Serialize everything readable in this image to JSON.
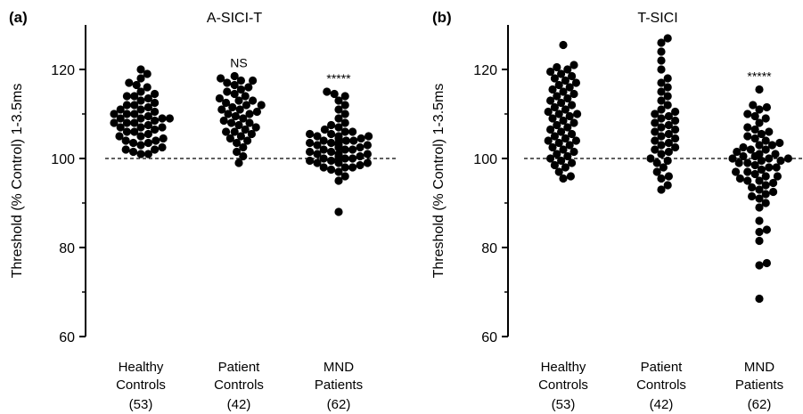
{
  "chart_data": [
    {
      "panel_label": "(a)",
      "type": "scatter",
      "title": "A-SICI-T",
      "ylabel": "Threshold (% Control) 1-3.5ms",
      "ylim": [
        60,
        130
      ],
      "yticks": [
        60,
        80,
        100,
        120
      ],
      "reference_line": 100,
      "categories": [
        {
          "line1": "Healthy",
          "line2": "Controls",
          "line3": "(53)"
        },
        {
          "line1": "Patient",
          "line2": "Controls",
          "line3": "(42)"
        },
        {
          "line1": "MND",
          "line2": "Patients",
          "line3": "(62)"
        }
      ],
      "annotations": [
        "",
        "NS",
        "*****"
      ],
      "series": [
        {
          "values": [
            101,
            101,
            101.5,
            102,
            102,
            102.5,
            103,
            103.5,
            103.5,
            104,
            104,
            104.5,
            105,
            105,
            105.5,
            106,
            106,
            106.5,
            107,
            107,
            107,
            107.5,
            108,
            108,
            108,
            108.5,
            109,
            109,
            109,
            109,
            109.5,
            110,
            110,
            110,
            110.5,
            111,
            111,
            111.5,
            112,
            112,
            112.5,
            113,
            113.5,
            114,
            114,
            114.5,
            115,
            116,
            116.5,
            117,
            118,
            119,
            120
          ]
        },
        {
          "values": [
            99,
            100.5,
            101.5,
            102.5,
            103.5,
            104,
            104.5,
            105,
            105.5,
            106,
            106,
            106.5,
            107,
            107.5,
            108,
            108,
            108.5,
            109,
            109.5,
            110,
            110,
            110.5,
            111,
            111,
            111.5,
            112,
            112,
            112.5,
            113,
            113,
            113.5,
            114,
            114.5,
            115,
            115.5,
            116,
            116.5,
            117,
            117.5,
            118,
            118.5,
            117.5
          ]
        },
        {
          "values": [
            88,
            95,
            96,
            97,
            97.5,
            98,
            98,
            98.5,
            99,
            99,
            99.5,
            99.5,
            100,
            100,
            100,
            100.5,
            100.5,
            101,
            101,
            101,
            101.5,
            101.5,
            102,
            102,
            102,
            102.5,
            102.5,
            103,
            103,
            103,
            103.5,
            103.5,
            104,
            104,
            104,
            104.5,
            104.5,
            105,
            105,
            105,
            105.5,
            105.5,
            106,
            106,
            106.5,
            107,
            107.5,
            108,
            109,
            110,
            111,
            112,
            113,
            114,
            114.5,
            115,
            101,
            102.5,
            103.5,
            100,
            99,
            98
          ]
        }
      ]
    },
    {
      "panel_label": "(b)",
      "type": "scatter",
      "title": "T-SICI",
      "ylabel": "Threshold (% Control) 1-3.5ms",
      "ylim": [
        60,
        130
      ],
      "yticks": [
        60,
        80,
        100,
        120
      ],
      "reference_line": 100,
      "categories": [
        {
          "line1": "Healthy",
          "line2": "Controls",
          "line3": "(53)"
        },
        {
          "line1": "Patient",
          "line2": "Controls",
          "line3": "(42)"
        },
        {
          "line1": "MND",
          "line2": "Patients",
          "line3": "(62)"
        }
      ],
      "annotations": [
        "",
        "",
        "*****"
      ],
      "series": [
        {
          "values": [
            95.5,
            96,
            97,
            98,
            98.5,
            99,
            99.5,
            100,
            100.5,
            101,
            101.5,
            102,
            102.5,
            103,
            103.5,
            104,
            104,
            104.5,
            105,
            105.5,
            106,
            106.5,
            107,
            107.5,
            108,
            108.5,
            109,
            109.5,
            110,
            110,
            110.5,
            111,
            111.5,
            112,
            112.5,
            113,
            113.5,
            114,
            114.5,
            115,
            115.5,
            116,
            116.5,
            117,
            117.5,
            118,
            118.5,
            119,
            119.5,
            120,
            120.5,
            121,
            125.5
          ]
        },
        {
          "values": [
            93,
            94,
            95.5,
            96,
            97,
            98,
            99,
            99.5,
            100,
            101,
            101.5,
            102,
            102.5,
            103,
            103.5,
            104,
            104.5,
            105,
            105.5,
            106,
            106.5,
            107,
            107.5,
            108,
            108.5,
            109,
            109.5,
            110,
            110.5,
            111,
            112,
            113,
            114,
            115,
            116,
            117,
            118,
            120,
            122,
            124,
            126,
            127
          ]
        },
        {
          "values": [
            68.5,
            76,
            76.5,
            81.5,
            83.5,
            84,
            86,
            89,
            90,
            91,
            91.5,
            92,
            92.5,
            93,
            93.5,
            94,
            94.5,
            95,
            95,
            95.5,
            96,
            96,
            96.5,
            97,
            97,
            97.5,
            98,
            98,
            98.5,
            99,
            99,
            99.5,
            99.5,
            100,
            100,
            100,
            100.5,
            100.5,
            101,
            101,
            101.5,
            102,
            102,
            102.5,
            103,
            103,
            103.5,
            104,
            104.5,
            105,
            105.5,
            106,
            106.5,
            107,
            108,
            109,
            109.5,
            110,
            111,
            111.5,
            112,
            115.5
          ]
        }
      ]
    }
  ]
}
